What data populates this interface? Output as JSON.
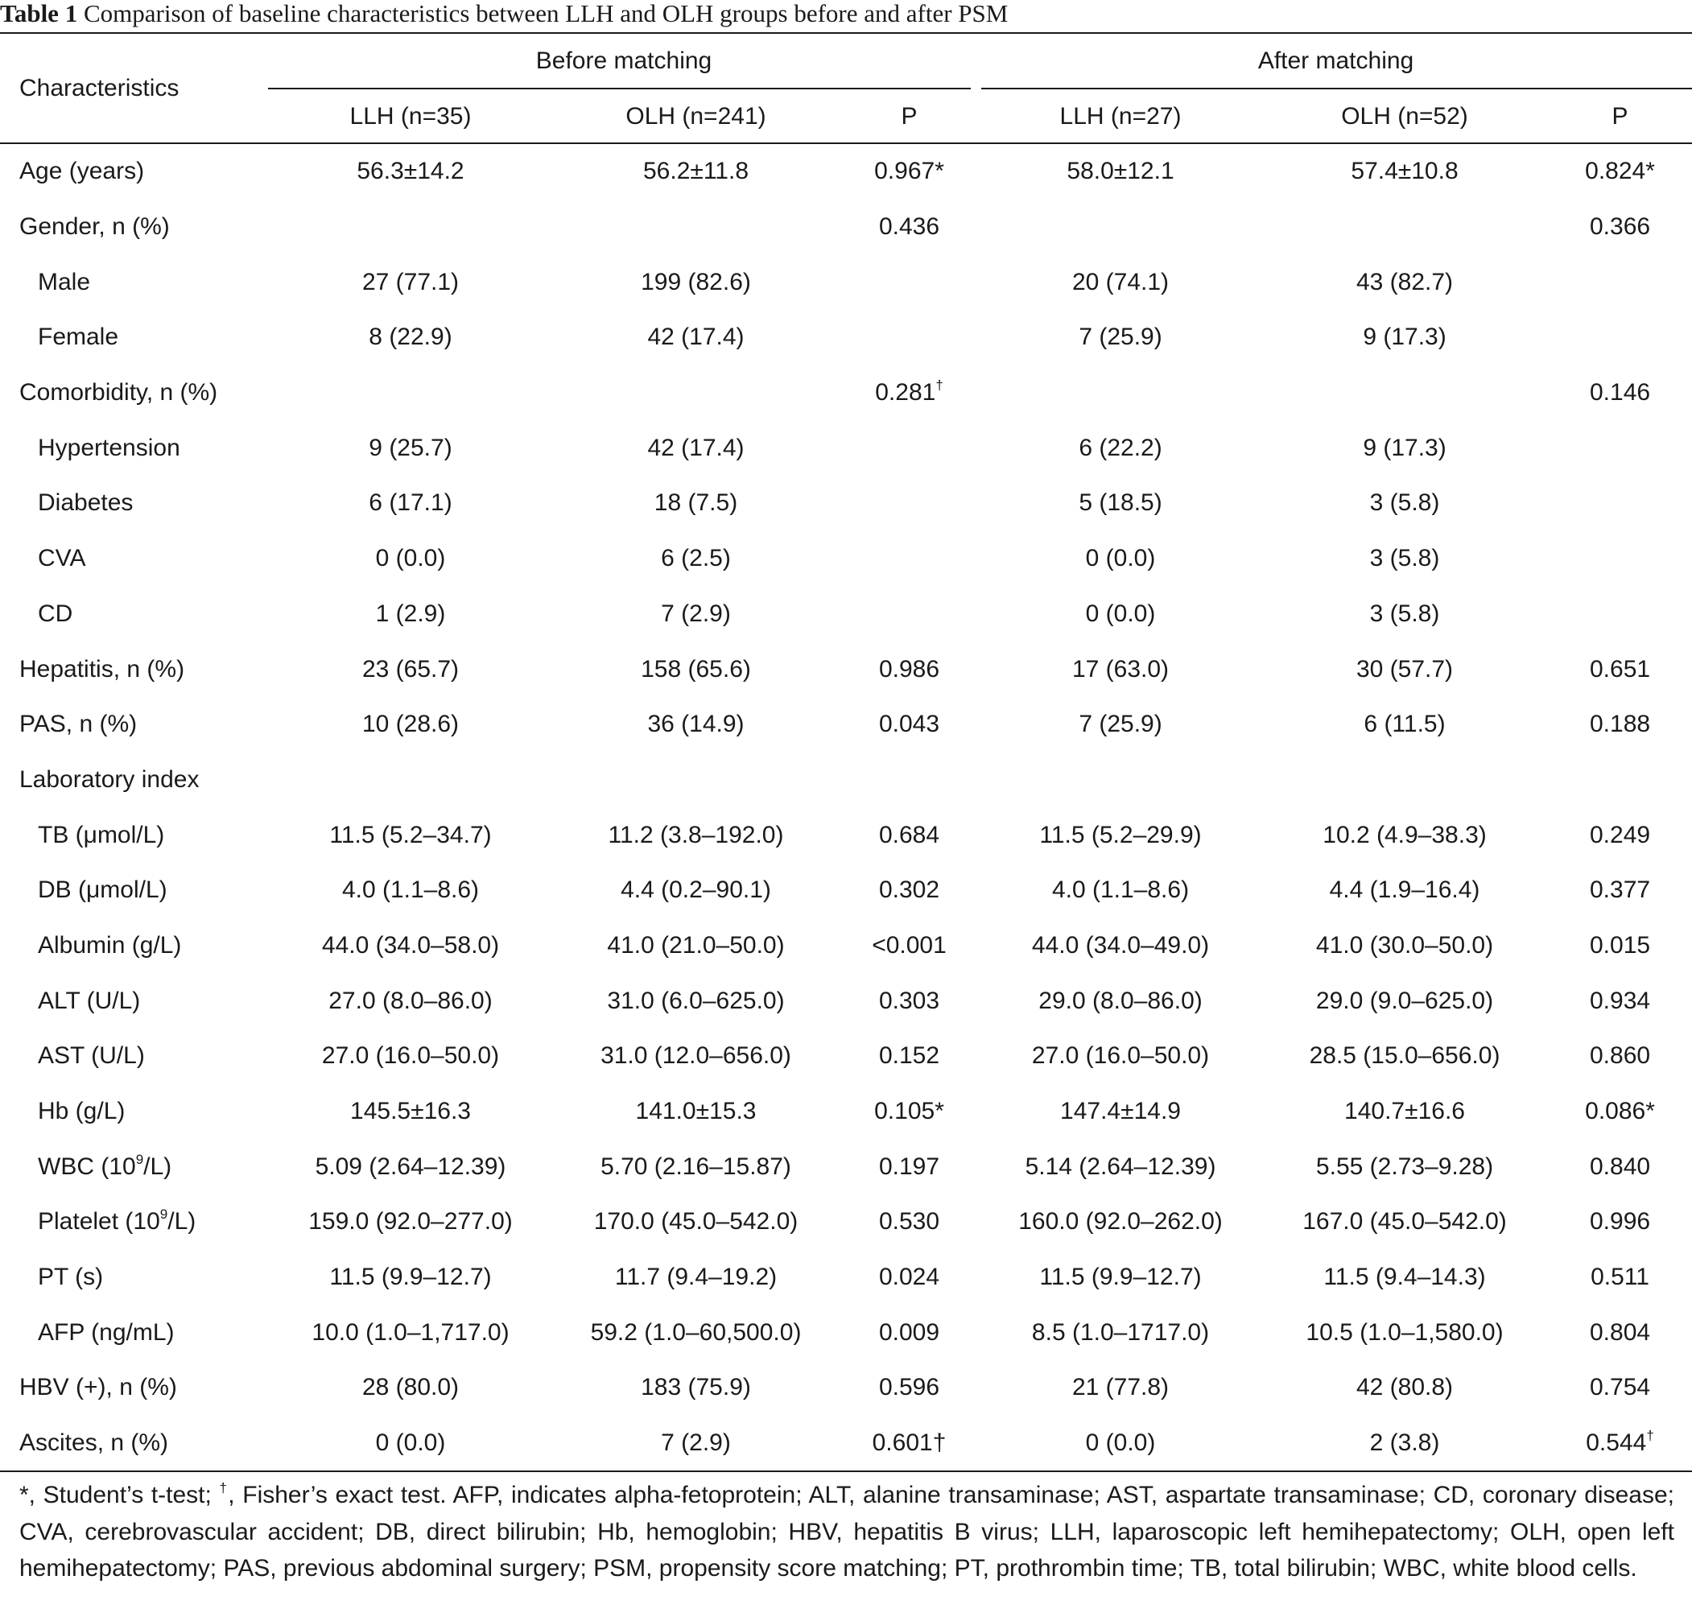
{
  "caption": {
    "label": "Table 1",
    "text": "Comparison of baseline characteristics between LLH and OLH groups before and after PSM"
  },
  "table": {
    "header": {
      "characteristics": "Characteristics",
      "before": "Before matching",
      "after": "After matching",
      "cols": [
        "LLH (n=35)",
        "OLH (n=241)",
        "P",
        "LLH (n=27)",
        "OLH (n=52)",
        "P"
      ]
    },
    "rows": [
      {
        "label": "Age (years)",
        "cells": [
          "56.3±14.2",
          "56.2±11.8",
          "0.967*",
          "58.0±12.1",
          "57.4±10.8",
          "0.824*"
        ]
      },
      {
        "label": "Gender, n (%)",
        "cells": [
          "",
          "",
          "0.436",
          "",
          "",
          "0.366"
        ]
      },
      {
        "label": "Male",
        "indent": true,
        "cells": [
          "27 (77.1)",
          "199 (82.6)",
          "",
          "20 (74.1)",
          "43 (82.7)",
          ""
        ]
      },
      {
        "label": "Female",
        "indent": true,
        "cells": [
          "8 (22.9)",
          "42 (17.4)",
          "",
          "7 (25.9)",
          "9 (17.3)",
          ""
        ]
      },
      {
        "label": "Comorbidity, n (%)",
        "cells": [
          "",
          "",
          "0.281",
          "",
          "",
          "0.146"
        ],
        "sups": {
          "2": "†"
        }
      },
      {
        "label": "Hypertension",
        "indent": true,
        "cells": [
          "9 (25.7)",
          "42 (17.4)",
          "",
          "6 (22.2)",
          "9 (17.3)",
          ""
        ]
      },
      {
        "label": "Diabetes",
        "indent": true,
        "cells": [
          "6 (17.1)",
          "18 (7.5)",
          "",
          "5 (18.5)",
          "3 (5.8)",
          ""
        ]
      },
      {
        "label": "CVA",
        "indent": true,
        "cells": [
          "0 (0.0)",
          "6 (2.5)",
          "",
          "0 (0.0)",
          "3 (5.8)",
          ""
        ]
      },
      {
        "label": "CD",
        "indent": true,
        "cells": [
          "1 (2.9)",
          "7 (2.9)",
          "",
          "0 (0.0)",
          "3 (5.8)",
          ""
        ]
      },
      {
        "label": "Hepatitis, n (%)",
        "cells": [
          "23 (65.7)",
          "158 (65.6)",
          "0.986",
          "17 (63.0)",
          "30 (57.7)",
          "0.651"
        ]
      },
      {
        "label": "PAS, n (%)",
        "cells": [
          "10 (28.6)",
          "36 (14.9)",
          "0.043",
          "7 (25.9)",
          "6 (11.5)",
          "0.188"
        ]
      },
      {
        "label": "Laboratory index",
        "cells": [
          "",
          "",
          "",
          "",
          "",
          ""
        ]
      },
      {
        "label": "TB (μmol/L)",
        "indent": true,
        "cells": [
          "11.5 (5.2–34.7)",
          "11.2 (3.8–192.0)",
          "0.684",
          "11.5 (5.2–29.9)",
          "10.2 (4.9–38.3)",
          "0.249"
        ]
      },
      {
        "label": "DB (μmol/L)",
        "indent": true,
        "cells": [
          "4.0 (1.1–8.6)",
          "4.4 (0.2–90.1)",
          "0.302",
          "4.0 (1.1–8.6)",
          "4.4 (1.9–16.4)",
          "0.377"
        ]
      },
      {
        "label": "Albumin (g/L)",
        "indent": true,
        "cells": [
          "44.0 (34.0–58.0)",
          "41.0 (21.0–50.0)",
          "<0.001",
          "44.0 (34.0–49.0)",
          "41.0 (30.0–50.0)",
          "0.015"
        ]
      },
      {
        "label": "ALT (U/L)",
        "indent": true,
        "cells": [
          "27.0 (8.0–86.0)",
          "31.0 (6.0–625.0)",
          "0.303",
          "29.0 (8.0–86.0)",
          "29.0 (9.0–625.0)",
          "0.934"
        ]
      },
      {
        "label": "AST (U/L)",
        "indent": true,
        "cells": [
          "27.0 (16.0–50.0)",
          "31.0 (12.0–656.0)",
          "0.152",
          "27.0 (16.0–50.0)",
          "28.5 (15.0–656.0)",
          "0.860"
        ]
      },
      {
        "label": "Hb (g/L)",
        "indent": true,
        "cells": [
          "145.5±16.3",
          "141.0±15.3",
          "0.105*",
          "147.4±14.9",
          "140.7±16.6",
          "0.086*"
        ]
      },
      {
        "label": "WBC (10",
        "labelSup": "9",
        "labelTail": "/L)",
        "indent": true,
        "cells": [
          "5.09 (2.64–12.39)",
          "5.70 (2.16–15.87)",
          "0.197",
          "5.14 (2.64–12.39)",
          "5.55 (2.73–9.28)",
          "0.840"
        ]
      },
      {
        "label": "Platelet (10",
        "labelSup": "9",
        "labelTail": "/L)",
        "indent": true,
        "cells": [
          "159.0 (92.0–277.0)",
          "170.0 (45.0–542.0)",
          "0.530",
          "160.0 (92.0–262.0)",
          "167.0 (45.0–542.0)",
          "0.996"
        ]
      },
      {
        "label": "PT (s)",
        "indent": true,
        "cells": [
          "11.5 (9.9–12.7)",
          "11.7 (9.4–19.2)",
          "0.024",
          "11.5 (9.9–12.7)",
          "11.5 (9.4–14.3)",
          "0.511"
        ]
      },
      {
        "label": "AFP (ng/mL)",
        "indent": true,
        "cells": [
          "10.0 (1.0–1,717.0)",
          "59.2 (1.0–60,500.0)",
          "0.009",
          "8.5 (1.0–1717.0)",
          "10.5 (1.0–1,580.0)",
          "0.804"
        ]
      },
      {
        "label": "HBV (+), n (%)",
        "cells": [
          "28 (80.0)",
          "183 (75.9)",
          "0.596",
          "21 (77.8)",
          "42 (80.8)",
          "0.754"
        ]
      },
      {
        "label": "Ascites, n (%)",
        "cells": [
          "0 (0.0)",
          "7 (2.9)",
          "0.601†",
          "0 (0.0)",
          "2 (3.8)",
          "0.544"
        ],
        "sups": {
          "5": "†"
        }
      }
    ]
  },
  "footnote": {
    "part1": "*, Student’s t-test; ",
    "mark": "†",
    "part2": ", Fisher’s exact test. AFP, indicates alpha-fetoprotein; ALT, alanine transaminase; AST, aspartate transaminase; CD, coronary disease; CVA, cerebrovascular accident; DB, direct bilirubin; Hb, hemoglobin; HBV, hepatitis B virus; LLH, laparoscopic left hemihepatectomy; OLH, open left hemihepatectomy; PAS, previous abdominal surgery; PSM, propensity score matching; PT, prothrombin time; TB, total bilirubin; WBC, white blood cells."
  }
}
